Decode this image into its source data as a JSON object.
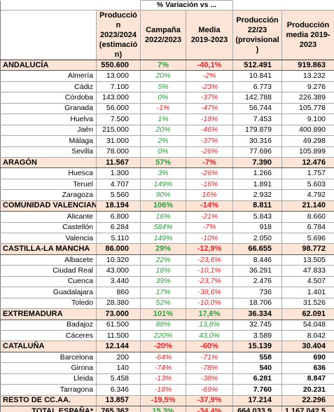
{
  "header": {
    "variation_group": "% Variación vs ...",
    "col_prod_2023_24": "Producción 2023/2024 (estimación)",
    "col_var_2022_23": "Campaña 2022/2023",
    "col_var_media": "Media 2019-2023",
    "col_prod_22_23": "Producción 22/23 (provisional)",
    "col_prod_media": "Producción media 2019-2023"
  },
  "colors": {
    "positive": "#2e9e3e",
    "negative": "#e3242b",
    "region_background": "#fce4d6"
  },
  "rows": [
    {
      "type": "region",
      "name": "ANDALUCÍA",
      "prod_2023_24": "550.600",
      "var_2022_23": "7%",
      "var_media": "-40,1%",
      "prod_22_23": "512.491",
      "prod_media": "919.863"
    },
    {
      "type": "province",
      "name": "Almería",
      "prod_2023_24": "13.000",
      "var_2022_23": "20%",
      "var_media": "-2%",
      "prod_22_23": "10.841",
      "prod_media": "13.232"
    },
    {
      "type": "province",
      "name": "Cádiz",
      "prod_2023_24": "7.100",
      "var_2022_23": "5%",
      "var_media": "-23%",
      "prod_22_23": "6.773",
      "prod_media": "9.276"
    },
    {
      "type": "province",
      "name": "Córdoba",
      "prod_2023_24": "143.000",
      "var_2022_23": "0%",
      "var_media": "-37%",
      "prod_22_23": "142.788",
      "prod_media": "226.389"
    },
    {
      "type": "province",
      "name": "Granada",
      "prod_2023_24": "56.000",
      "var_2022_23": "-1%",
      "var_media": "-47%",
      "prod_22_23": "56.744",
      "prod_media": "105.778"
    },
    {
      "type": "province",
      "name": "Huelva",
      "prod_2023_24": "7.500",
      "var_2022_23": "1%",
      "var_media": "-18%",
      "prod_22_23": "7.453",
      "prod_media": "9.100"
    },
    {
      "type": "province",
      "name": "Jaén",
      "prod_2023_24": "215.000",
      "var_2022_23": "20%",
      "var_media": "-46%",
      "prod_22_23": "179.879",
      "prod_media": "400.890"
    },
    {
      "type": "province",
      "name": "Málaga",
      "prod_2023_24": "31.000",
      "var_2022_23": "2%",
      "var_media": "-37%",
      "prod_22_23": "30.316",
      "prod_media": "49.298"
    },
    {
      "type": "province",
      "name": "Sevilla",
      "prod_2023_24": "78.000",
      "var_2022_23": "0%",
      "var_media": "-26%",
      "prod_22_23": "77.696",
      "prod_media": "105.899"
    },
    {
      "type": "region",
      "name": "ARAGÓN",
      "prod_2023_24": "11.567",
      "var_2022_23": "57%",
      "var_media": "-7%",
      "prod_22_23": "7.390",
      "prod_media": "12.476"
    },
    {
      "type": "province",
      "name": "Huesca",
      "prod_2023_24": "1.300",
      "var_2022_23": "3%",
      "var_media": "-26%",
      "prod_22_23": "1.266",
      "prod_media": "1.757"
    },
    {
      "type": "province",
      "name": "Teruel",
      "prod_2023_24": "4.707",
      "var_2022_23": "149%",
      "var_media": "-16%",
      "prod_22_23": "1.891",
      "prod_media": "5.603"
    },
    {
      "type": "province",
      "name": "Zaragoza",
      "prod_2023_24": "5.560",
      "var_2022_23": "90%",
      "var_media": "16%",
      "prod_22_23": "2.932",
      "prod_media": "4.792"
    },
    {
      "type": "region",
      "name": "COMUNIDAD VALENCIANA",
      "prod_2023_24": "18.194",
      "var_2022_23": "106%",
      "var_media": "-14%",
      "prod_22_23": "8.811",
      "prod_media": "21.140"
    },
    {
      "type": "province",
      "name": "Alicante",
      "prod_2023_24": "6.800",
      "var_2022_23": "16%",
      "var_media": "-21%",
      "prod_22_23": "5.843",
      "prod_media": "8.660"
    },
    {
      "type": "province",
      "name": "Castellón",
      "prod_2023_24": "6.284",
      "var_2022_23": "584%",
      "var_media": "-7%",
      "prod_22_23": "918",
      "prod_media": "6.784"
    },
    {
      "type": "province",
      "name": "Valencia",
      "prod_2023_24": "5.110",
      "var_2022_23": "149%",
      "var_media": "-10%",
      "prod_22_23": "2.050",
      "prod_media": "5.696"
    },
    {
      "type": "region",
      "name": "CASTILLA-LA MANCHA",
      "prod_2023_24": "86.000",
      "var_2022_23": "29%",
      "var_media": "-12,9%",
      "prod_22_23": "66.655",
      "prod_media": "98.772"
    },
    {
      "type": "province",
      "name": "Albacete",
      "prod_2023_24": "10.320",
      "var_2022_23": "22%",
      "var_media": "-23,6%",
      "prod_22_23": "8.446",
      "prod_media": "13.505"
    },
    {
      "type": "province",
      "name": "Ciudad Real",
      "prod_2023_24": "43.000",
      "var_2022_23": "18%",
      "var_media": "-10,1%",
      "prod_22_23": "36.291",
      "prod_media": "47.833"
    },
    {
      "type": "province",
      "name": "Cuenca",
      "prod_2023_24": "3.440",
      "var_2022_23": "39%",
      "var_media": "-23,7%",
      "prod_22_23": "2.476",
      "prod_media": "4.507"
    },
    {
      "type": "province",
      "name": "Guadalajara",
      "prod_2023_24": "860",
      "var_2022_23": "17%",
      "var_media": "-38,6%",
      "prod_22_23": "736",
      "prod_media": "1.401"
    },
    {
      "type": "province",
      "name": "Toledo",
      "prod_2023_24": "28.380",
      "var_2022_23": "52%",
      "var_media": "-10,0%",
      "prod_22_23": "18.706",
      "prod_media": "31.526"
    },
    {
      "type": "region",
      "name": "EXTREMADURA",
      "prod_2023_24": "73.000",
      "var_2022_23": "101%",
      "var_media": "17,6%",
      "prod_22_23": "36.334",
      "prod_media": "62.091"
    },
    {
      "type": "province",
      "name": "Badajoz",
      "prod_2023_24": "61.500",
      "var_2022_23": "88%",
      "var_media": "13,8%",
      "prod_22_23": "32.745",
      "prod_media": "54.048"
    },
    {
      "type": "province",
      "name": "Cáceres",
      "prod_2023_24": "11.500",
      "var_2022_23": "220%",
      "var_media": "43,0%",
      "prod_22_23": "3.589",
      "prod_media": "8.042"
    },
    {
      "type": "region",
      "name": "CATALUÑA",
      "prod_2023_24": "12.144",
      "var_2022_23": "-20%",
      "var_media": "-60%",
      "prod_22_23": "15.139",
      "prod_media": "30.404"
    },
    {
      "type": "province",
      "name": "Barcelona",
      "prod_2023_24": "200",
      "var_2022_23": "-64%",
      "var_media": "-71%",
      "prod_22_23": "558",
      "prod_media": "690"
    },
    {
      "type": "province",
      "name": "Girona",
      "prod_2023_24": "140",
      "var_2022_23": "-74%",
      "var_media": "-78%",
      "prod_22_23": "540",
      "prod_media": "636"
    },
    {
      "type": "province",
      "name": "Lleida",
      "prod_2023_24": "5.458",
      "var_2022_23": "-13%",
      "var_media": "-38%",
      "prod_22_23": "6.281",
      "prod_media": "8.847"
    },
    {
      "type": "province",
      "name": "Tarragona",
      "prod_2023_24": "6.346",
      "var_2022_23": "-18%",
      "var_media": "-69%",
      "prod_22_23": "7.760",
      "prod_media": "20.231"
    },
    {
      "type": "region",
      "name": "RESTO DE CC.AA.",
      "prod_2023_24": "13.857",
      "var_2022_23": "-19,5%",
      "var_media": "-37,9%",
      "prod_22_23": "17.214",
      "prod_media": "22.296"
    },
    {
      "type": "total",
      "name": "TOTAL ESPAÑA*",
      "prod_2023_24": "765.362",
      "var_2022_23": "15,3%",
      "var_media": "-34,4%",
      "prod_22_23": "664.033,9",
      "prod_media": "1.167.042,5"
    }
  ]
}
